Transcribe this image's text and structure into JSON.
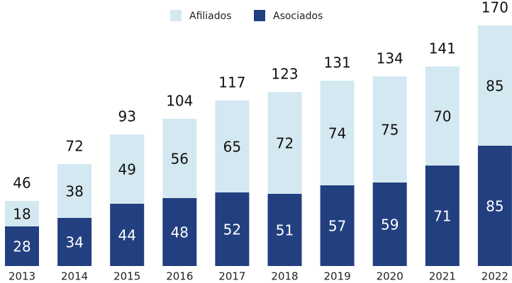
{
  "chart_data": {
    "type": "stacked_bar",
    "categories": [
      "2013",
      "2014",
      "2015",
      "2016",
      "2017",
      "2018",
      "2019",
      "2020",
      "2021",
      "2022"
    ],
    "series": [
      {
        "name": "Asociados",
        "color": "#223f80",
        "values": [
          28,
          34,
          44,
          48,
          52,
          51,
          57,
          59,
          71,
          85
        ]
      },
      {
        "name": "Afiliados",
        "color": "#d3e8f0",
        "values": [
          18,
          38,
          49,
          56,
          65,
          72,
          74,
          75,
          70,
          85
        ]
      }
    ],
    "totals": [
      46,
      72,
      93,
      104,
      117,
      123,
      131,
      134,
      141,
      170
    ],
    "legend": "top"
  }
}
